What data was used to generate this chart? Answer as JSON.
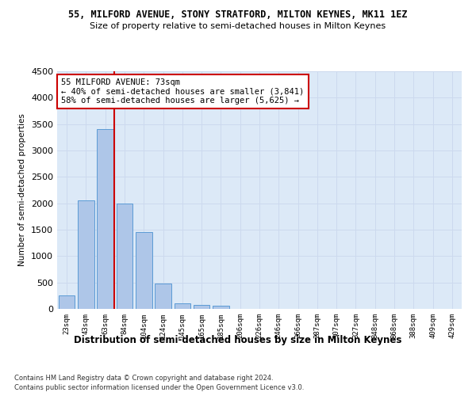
{
  "title": "55, MILFORD AVENUE, STONY STRATFORD, MILTON KEYNES, MK11 1EZ",
  "subtitle": "Size of property relative to semi-detached houses in Milton Keynes",
  "xlabel": "Distribution of semi-detached houses by size in Milton Keynes",
  "ylabel": "Number of semi-detached properties",
  "footer1": "Contains HM Land Registry data © Crown copyright and database right 2024.",
  "footer2": "Contains public sector information licensed under the Open Government Licence v3.0.",
  "categories": [
    "23sqm",
    "43sqm",
    "63sqm",
    "84sqm",
    "104sqm",
    "124sqm",
    "145sqm",
    "165sqm",
    "185sqm",
    "206sqm",
    "226sqm",
    "246sqm",
    "266sqm",
    "287sqm",
    "307sqm",
    "327sqm",
    "348sqm",
    "368sqm",
    "388sqm",
    "409sqm",
    "429sqm"
  ],
  "values": [
    250,
    2050,
    3400,
    2000,
    1450,
    480,
    100,
    70,
    55,
    0,
    0,
    0,
    0,
    0,
    0,
    0,
    0,
    0,
    0,
    0,
    0
  ],
  "bar_color": "#aec6e8",
  "bar_edge_color": "#5b9bd5",
  "grid_color": "#ccd9ee",
  "background_color": "#dce9f7",
  "figure_background": "#ffffff",
  "vline_color": "#cc0000",
  "annotation_text": "55 MILFORD AVENUE: 73sqm\n← 40% of semi-detached houses are smaller (3,841)\n58% of semi-detached houses are larger (5,625) →",
  "annotation_box_color": "#ffffff",
  "annotation_box_edge": "#cc0000",
  "ylim": [
    0,
    4500
  ],
  "yticks": [
    0,
    500,
    1000,
    1500,
    2000,
    2500,
    3000,
    3500,
    4000,
    4500
  ],
  "vline_pos": 2.45
}
